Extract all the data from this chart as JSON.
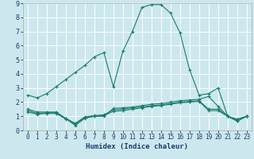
{
  "xlabel": "Humidex (Indice chaleur)",
  "xlim": [
    -0.5,
    23.5
  ],
  "ylim": [
    0,
    9
  ],
  "xticks": [
    0,
    1,
    2,
    3,
    4,
    5,
    6,
    7,
    8,
    9,
    10,
    11,
    12,
    13,
    14,
    15,
    16,
    17,
    18,
    19,
    20,
    21,
    22,
    23
  ],
  "yticks": [
    0,
    1,
    2,
    3,
    4,
    5,
    6,
    7,
    8,
    9
  ],
  "bg_color": "#cce8ee",
  "grid_color": "#ffffff",
  "line_color": "#1a7a6e",
  "lines": [
    {
      "x": [
        0,
        1,
        2,
        3,
        4,
        5,
        6,
        7,
        8,
        9,
        10,
        11,
        12,
        13,
        14,
        15,
        16,
        17,
        18,
        19,
        20,
        21,
        22,
        23
      ],
      "y": [
        2.5,
        2.3,
        2.6,
        3.1,
        3.6,
        4.1,
        4.6,
        5.2,
        5.5,
        3.1,
        5.6,
        7.0,
        8.7,
        8.9,
        8.9,
        8.3,
        6.9,
        4.3,
        2.5,
        2.6,
        3.0,
        1.0,
        0.8,
        1.0
      ]
    },
    {
      "x": [
        0,
        1,
        2,
        3,
        4,
        5,
        6,
        7,
        8,
        9,
        10,
        11,
        12,
        13,
        14,
        15,
        16,
        17,
        18,
        19,
        20,
        21,
        22,
        23
      ],
      "y": [
        1.5,
        1.3,
        1.3,
        1.3,
        0.85,
        0.35,
        0.85,
        1.0,
        1.0,
        1.55,
        1.6,
        1.65,
        1.75,
        1.85,
        1.9,
        2.0,
        2.1,
        2.15,
        2.2,
        2.4,
        1.7,
        1.0,
        0.7,
        1.0
      ]
    },
    {
      "x": [
        0,
        1,
        2,
        3,
        4,
        5,
        6,
        7,
        8,
        9,
        10,
        11,
        12,
        13,
        14,
        15,
        16,
        17,
        18,
        19,
        20,
        21,
        22,
        23
      ],
      "y": [
        1.4,
        1.2,
        1.25,
        1.25,
        0.85,
        0.5,
        0.95,
        1.05,
        1.1,
        1.45,
        1.5,
        1.6,
        1.65,
        1.75,
        1.8,
        1.9,
        2.0,
        2.05,
        2.1,
        1.5,
        1.5,
        1.0,
        0.7,
        1.0
      ]
    },
    {
      "x": [
        0,
        1,
        2,
        3,
        4,
        5,
        6,
        7,
        8,
        9,
        10,
        11,
        12,
        13,
        14,
        15,
        16,
        17,
        18,
        19,
        20,
        21,
        22,
        23
      ],
      "y": [
        1.3,
        1.15,
        1.2,
        1.2,
        0.8,
        0.45,
        0.9,
        1.0,
        1.05,
        1.35,
        1.4,
        1.5,
        1.6,
        1.7,
        1.75,
        1.85,
        1.95,
        2.0,
        2.05,
        1.4,
        1.4,
        1.0,
        0.65,
        1.0
      ]
    }
  ]
}
